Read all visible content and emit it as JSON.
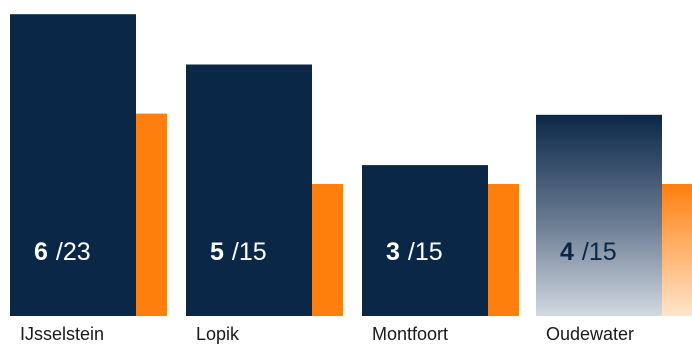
{
  "chart_data": {
    "type": "bar",
    "categories": [
      "IJsselstein",
      "Lopik",
      "Montfoort",
      "Oudewater"
    ],
    "series": [
      {
        "values": [
          6,
          5,
          3,
          4
        ]
      },
      {
        "values": [
          23,
          15,
          15,
          15
        ]
      }
    ],
    "labels": [
      {
        "primary": "6",
        "total": "/23"
      },
      {
        "primary": "5",
        "total": "/15"
      },
      {
        "primary": "3",
        "total": "/15"
      },
      {
        "primary": "4",
        "total": "/15"
      }
    ],
    "faded_categories": [
      "Oudewater"
    ],
    "colors": {
      "primary": "#0a2748",
      "secondary": "#ff7f0e",
      "label_light": "#ffffff",
      "label_dark": "#0a2748",
      "category_text": "#1a1a1a"
    },
    "xlabel": "",
    "ylabel": "",
    "grid": false,
    "legend": "none"
  }
}
